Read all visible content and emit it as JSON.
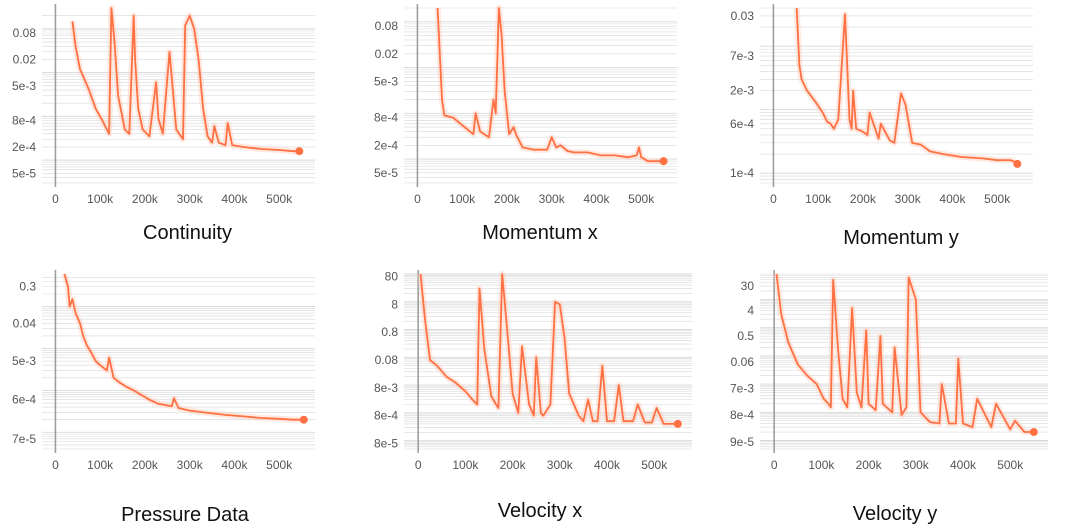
{
  "colors": {
    "line": "#ff7043",
    "line_faint": "#ffcbb8",
    "grid": "#d7d7d7",
    "axis": "#9e9e9e",
    "text": "#555555"
  },
  "chart_data": [
    {
      "type": "line",
      "title": "Continuity",
      "yscale": "log",
      "ylim": [
        3e-05,
        0.3
      ],
      "xlim": [
        -30000,
        580000
      ],
      "xticks": [
        0,
        100000,
        200000,
        300000,
        400000,
        500000
      ],
      "xtick_labels": [
        "0",
        "100k",
        "200k",
        "300k",
        "400k",
        "500k"
      ],
      "yticks": [
        0.08,
        0.02,
        0.005,
        0.0008,
        0.0002,
        5e-05
      ],
      "ytick_labels": [
        "0.08",
        "0.02",
        "5e-3",
        "8e-4",
        "2e-4",
        "5e-5"
      ],
      "series": [
        {
          "x": [
            38000,
            45000,
            55000,
            65000,
            75000,
            90000,
            105000,
            115000,
            120000,
            125000,
            132000,
            140000,
            155000,
            165000,
            175000,
            178000,
            185000,
            195000,
            210000,
            225000,
            230000,
            240000,
            255000,
            270000,
            285000,
            290000,
            300000,
            310000,
            320000,
            330000,
            340000,
            350000,
            355000,
            365000,
            380000,
            385000,
            395000,
            420000,
            460000,
            500000,
            530000,
            545000
          ],
          "y": [
            0.15,
            0.04,
            0.012,
            0.007,
            0.004,
            0.0015,
            0.0008,
            0.0005,
            0.0004,
            0.3,
            0.05,
            0.003,
            0.0005,
            0.0004,
            0.2,
            0.02,
            0.0015,
            0.0005,
            0.00035,
            0.006,
            0.0009,
            0.0004,
            0.03,
            0.0005,
            0.0003,
            0.12,
            0.2,
            0.1,
            0.02,
            0.0015,
            0.00035,
            0.00025,
            0.0006,
            0.00025,
            0.00022,
            0.0007,
            0.00022,
            0.0002,
            0.00018,
            0.00017,
            0.00016,
            0.00016
          ]
        }
      ]
    },
    {
      "type": "line",
      "title": "Momentum x",
      "yscale": "log",
      "ylim": [
        3e-05,
        0.2
      ],
      "xlim": [
        -30000,
        580000
      ],
      "xticks": [
        0,
        100000,
        200000,
        300000,
        400000,
        500000
      ],
      "xtick_labels": [
        "0",
        "100k",
        "200k",
        "300k",
        "400k",
        "500k"
      ],
      "yticks": [
        0.08,
        0.02,
        0.005,
        0.0008,
        0.0002,
        5e-05
      ],
      "ytick_labels": [
        "0.08",
        "0.02",
        "5e-3",
        "8e-4",
        "2e-4",
        "5e-5"
      ],
      "series": [
        {
          "x": [
            45000,
            55000,
            60000,
            80000,
            100000,
            125000,
            130000,
            140000,
            160000,
            170000,
            175000,
            182000,
            188000,
            195000,
            205000,
            215000,
            220000,
            235000,
            260000,
            290000,
            300000,
            310000,
            320000,
            335000,
            350000,
            380000,
            410000,
            440000,
            470000,
            490000,
            495000,
            500000,
            515000,
            540000,
            550000
          ],
          "y": [
            0.2,
            0.002,
            0.0009,
            0.0008,
            0.00055,
            0.00035,
            0.001,
            0.0004,
            0.0003,
            0.002,
            0.001,
            0.2,
            0.05,
            0.003,
            0.00035,
            0.0005,
            0.00035,
            0.00018,
            0.00016,
            0.00016,
            0.0003,
            0.00018,
            0.0002,
            0.00015,
            0.00014,
            0.00014,
            0.00012,
            0.00012,
            0.00011,
            0.00012,
            0.00018,
            0.00011,
            9e-05,
            9e-05,
            9e-05
          ]
        }
      ]
    },
    {
      "type": "line",
      "title": "Momentum y",
      "yscale": "log",
      "ylim": [
        7e-05,
        0.04
      ],
      "xlim": [
        -30000,
        580000
      ],
      "xticks": [
        0,
        100000,
        200000,
        300000,
        400000,
        500000
      ],
      "xtick_labels": [
        "0",
        "100k",
        "200k",
        "300k",
        "400k",
        "500k"
      ],
      "yticks": [
        0.03,
        0.007,
        0.002,
        0.0006,
        0.0001
      ],
      "ytick_labels": [
        "0.03",
        "7e-3",
        "2e-3",
        "6e-4",
        "1e-4"
      ],
      "series": [
        {
          "x": [
            52000,
            58000,
            63000,
            75000,
            95000,
            110000,
            120000,
            128000,
            135000,
            145000,
            160000,
            170000,
            175000,
            178000,
            185000,
            200000,
            210000,
            215000,
            235000,
            240000,
            260000,
            270000,
            285000,
            295000,
            310000,
            330000,
            350000,
            380000,
            420000,
            470000,
            500000,
            530000,
            540000,
            545000
          ],
          "y": [
            0.04,
            0.005,
            0.003,
            0.002,
            0.0013,
            0.0009,
            0.00065,
            0.0006,
            0.0005,
            0.0007,
            0.032,
            0.0007,
            0.0005,
            0.002,
            0.0005,
            0.00045,
            0.0004,
            0.0009,
            0.00035,
            0.0006,
            0.00033,
            0.0003,
            0.0018,
            0.0012,
            0.0003,
            0.00028,
            0.00022,
            0.0002,
            0.00018,
            0.00017,
            0.00016,
            0.00016,
            0.00015,
            0.00014
          ]
        }
      ]
    },
    {
      "type": "line",
      "title": "Pressure Data",
      "yscale": "log",
      "ylim": [
        4e-05,
        0.6
      ],
      "xlim": [
        -30000,
        580000
      ],
      "xticks": [
        0,
        100000,
        200000,
        300000,
        400000,
        500000
      ],
      "xtick_labels": [
        "0",
        "100k",
        "200k",
        "300k",
        "400k",
        "500k"
      ],
      "yticks": [
        0.3,
        0.04,
        0.005,
        0.0006,
        7e-05
      ],
      "ytick_labels": [
        "0.3",
        "0.04",
        "5e-3",
        "6e-4",
        "7e-5"
      ],
      "series": [
        {
          "x": [
            20000,
            28000,
            32000,
            38000,
            45000,
            55000,
            62000,
            70000,
            80000,
            90000,
            100000,
            115000,
            120000,
            130000,
            145000,
            160000,
            175000,
            190000,
            210000,
            230000,
            260000,
            265000,
            275000,
            300000,
            340000,
            380000,
            420000,
            460000,
            500000,
            530000,
            555000
          ],
          "y": [
            0.6,
            0.3,
            0.1,
            0.15,
            0.07,
            0.04,
            0.02,
            0.012,
            0.008,
            0.005,
            0.004,
            0.003,
            0.006,
            0.002,
            0.0015,
            0.0012,
            0.001,
            0.0008,
            0.0006,
            0.00048,
            0.00042,
            0.00065,
            0.00038,
            0.00033,
            0.00029,
            0.00026,
            0.00024,
            0.00022,
            0.00021,
            0.0002,
            0.0002
          ]
        }
      ]
    },
    {
      "type": "line",
      "title": "Velocity x",
      "yscale": "log",
      "ylim": [
        5e-05,
        100
      ],
      "xlim": [
        -30000,
        580000
      ],
      "xticks": [
        0,
        100000,
        200000,
        300000,
        400000,
        500000
      ],
      "xtick_labels": [
        "0",
        "100k",
        "200k",
        "300k",
        "400k",
        "500k"
      ],
      "yticks": [
        80,
        8,
        0.8,
        0.08,
        0.008,
        0.0008,
        8e-05
      ],
      "ytick_labels": [
        "80",
        "8",
        "0.8",
        "0.08",
        "8e-3",
        "8e-4",
        "8e-5"
      ],
      "series": [
        {
          "x": [
            5000,
            15000,
            25000,
            40000,
            60000,
            80000,
            100000,
            115000,
            125000,
            130000,
            140000,
            155000,
            165000,
            170000,
            178000,
            190000,
            200000,
            212000,
            220000,
            235000,
            245000,
            250000,
            260000,
            265000,
            280000,
            290000,
            300000,
            310000,
            320000,
            340000,
            350000,
            360000,
            370000,
            380000,
            390000,
            400000,
            415000,
            425000,
            435000,
            455000,
            465000,
            480000,
            495000,
            505000,
            520000,
            550000
          ],
          "y": [
            100,
            2,
            0.08,
            0.05,
            0.02,
            0.012,
            0.006,
            0.003,
            0.002,
            30,
            0.2,
            0.004,
            0.002,
            0.0015,
            100,
            0.5,
            0.005,
            0.001,
            0.25,
            0.002,
            0.0008,
            0.1,
            0.001,
            0.0008,
            0.002,
            10,
            8,
            0.5,
            0.005,
            0.0008,
            0.0005,
            0.003,
            0.0005,
            0.0005,
            0.05,
            0.0005,
            0.0005,
            0.01,
            0.0005,
            0.0005,
            0.002,
            0.00045,
            0.00045,
            0.0015,
            0.0004,
            0.0004
          ]
        }
      ]
    },
    {
      "type": "line",
      "title": "Velocity y",
      "yscale": "log",
      "ylim": [
        5e-05,
        80
      ],
      "xlim": [
        -30000,
        580000
      ],
      "xticks": [
        0,
        100000,
        200000,
        300000,
        400000,
        500000
      ],
      "xtick_labels": [
        "0",
        "100k",
        "200k",
        "300k",
        "400k",
        "500k"
      ],
      "yticks": [
        30,
        4,
        0.5,
        0.06,
        0.007,
        0.0008,
        9e-05
      ],
      "ytick_labels": [
        "30",
        "4",
        "0.5",
        "0.06",
        "7e-3",
        "8e-4",
        "9e-5"
      ],
      "series": [
        {
          "x": [
            5000,
            15000,
            30000,
            50000,
            70000,
            90000,
            105000,
            115000,
            120000,
            125000,
            135000,
            145000,
            155000,
            165000,
            175000,
            185000,
            195000,
            200000,
            215000,
            225000,
            230000,
            250000,
            255000,
            270000,
            280000,
            285000,
            300000,
            310000,
            330000,
            350000,
            355000,
            370000,
            385000,
            390000,
            400000,
            420000,
            430000,
            460000,
            470000,
            500000,
            510000,
            530000,
            550000
          ],
          "y": [
            80,
            3,
            0.3,
            0.05,
            0.02,
            0.01,
            0.003,
            0.002,
            0.0015,
            50,
            0.2,
            0.003,
            0.0015,
            5,
            0.005,
            0.0015,
            0.8,
            0.002,
            0.0012,
            0.5,
            0.002,
            0.001,
            0.2,
            0.0008,
            0.0015,
            60,
            10,
            0.001,
            0.00045,
            0.0004,
            0.01,
            0.0004,
            0.0004,
            0.08,
            0.0004,
            0.0003,
            0.003,
            0.0003,
            0.002,
            0.00025,
            0.0005,
            0.0002,
            0.0002
          ]
        }
      ]
    }
  ]
}
